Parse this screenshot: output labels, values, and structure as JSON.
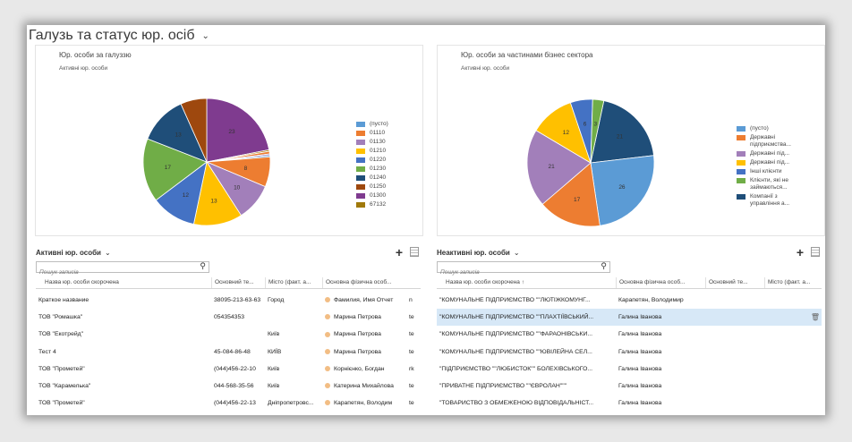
{
  "dashboard": {
    "title": "Галузь та статус юр. осіб"
  },
  "chart1": {
    "title": "Юр. особи за галуззю",
    "subtitle": "Активні юр. особи"
  },
  "chart2": {
    "title": "Юр. особи за частинами бізнес сектора",
    "subtitle": "Активні юр. особи"
  },
  "chart_data": [
    {
      "type": "pie",
      "title": "Юр. особи за галуззю",
      "subtitle": "Активні юр. особи",
      "legend_position": "right",
      "slices": [
        {
          "label": "01300",
          "value": 23,
          "color": "#7f3b8f",
          "shown": "23"
        },
        {
          "label": "67132",
          "value": 0.4,
          "color": "#a0790a",
          "shown": ""
        },
        {
          "label": "01110",
          "value": 0.7,
          "color": "#ed7d31",
          "shown": ""
        },
        {
          "label": "01130",
          "value": 0.4,
          "color": "#a27fba",
          "shown": ""
        },
        {
          "label": "(пусто)",
          "value": 0.4,
          "color": "#5b9bd5",
          "shown": ""
        },
        {
          "label": "01110",
          "value": 8,
          "color": "#ed7d31",
          "shown": "8"
        },
        {
          "label": "01130",
          "value": 10,
          "color": "#a27fba",
          "shown": "10"
        },
        {
          "label": "01210",
          "value": 13,
          "color": "#ffc000",
          "shown": "13"
        },
        {
          "label": "01220",
          "value": 12,
          "color": "#4472c4",
          "shown": "12"
        },
        {
          "label": "01230",
          "value": 17,
          "color": "#70ad47",
          "shown": "17"
        },
        {
          "label": "01240",
          "value": 13,
          "color": "#1f4e79",
          "shown": "13"
        },
        {
          "label": "01250",
          "value": 7,
          "color": "#9e480e",
          "shown": ""
        }
      ],
      "legend": [
        {
          "label": "(пусто)",
          "color": "#5b9bd5"
        },
        {
          "label": "01110",
          "color": "#ed7d31"
        },
        {
          "label": "01130",
          "color": "#a27fba"
        },
        {
          "label": "01210",
          "color": "#ffc000"
        },
        {
          "label": "01220",
          "color": "#4472c4"
        },
        {
          "label": "01230",
          "color": "#70ad47"
        },
        {
          "label": "01240",
          "color": "#1f4e79"
        },
        {
          "label": "01250",
          "color": "#9e480e"
        },
        {
          "label": "01300",
          "color": "#7f3b8f"
        },
        {
          "label": "67132",
          "color": "#a0790a"
        }
      ]
    },
    {
      "type": "pie",
      "title": "Юр. особи за частинами бізнес сектора",
      "subtitle": "Активні юр. особи",
      "legend_position": "right",
      "slices": [
        {
          "label": "Компанії з управління а...",
          "value": 21,
          "color": "#1f4e79",
          "shown": "21"
        },
        {
          "label": "(пусто)",
          "value": 26,
          "color": "#5b9bd5",
          "shown": "26"
        },
        {
          "label": "Державні підприємства...",
          "value": 17,
          "color": "#ed7d31",
          "shown": "17"
        },
        {
          "label": "Державні під...",
          "value": 21,
          "color": "#a27fba",
          "shown": "21"
        },
        {
          "label": "Державні під...",
          "value": 12,
          "color": "#ffc000",
          "shown": "12"
        },
        {
          "label": "Інші клієнти",
          "value": 6,
          "color": "#4472c4",
          "shown": "6"
        },
        {
          "label": "Клієнти, які не займаються...",
          "value": 3,
          "color": "#70ad47",
          "shown": "3"
        }
      ],
      "legend": [
        {
          "label": "(пусто)",
          "color": "#5b9bd5"
        },
        {
          "label": "Державні підприємства...",
          "color": "#ed7d31"
        },
        {
          "label": "Державні під...",
          "color": "#a27fba"
        },
        {
          "label": "Державні під...",
          "color": "#ffc000"
        },
        {
          "label": "Інші клієнти",
          "color": "#4472c4"
        },
        {
          "label": "Клієнти, які не займаються...",
          "color": "#70ad47"
        },
        {
          "label": "Компанії з управління а...",
          "color": "#1f4e79"
        }
      ]
    }
  ],
  "grid_left": {
    "title": "Активні юр. особи",
    "dropdown_icon": "chevron-down",
    "add_icon": "plus",
    "view_icon": "grid-view",
    "search_placeholder": "Пошук записів",
    "search_icon": "magnifier",
    "columns": [
      "Назва юр. особи скорочена",
      "Основний те...",
      "Місто (факт. а...",
      "Основна фізична особ..."
    ],
    "rows": [
      {
        "name": "Краткое название",
        "phone": "38095-213-63-63",
        "city": "Город",
        "contact": "Фамилия, Имя Отчет",
        "extra": "n"
      },
      {
        "name": "ТОВ \"Ромашка\"",
        "phone": "054354353",
        "city": "",
        "contact": "Марина Петрова",
        "extra": "te"
      },
      {
        "name": "ТОВ \"Екотрейд\"",
        "phone": "",
        "city": "Київ",
        "contact": "Марина Петрова",
        "extra": "te"
      },
      {
        "name": "Тест 4",
        "phone": "45-084-86-48",
        "city": "КИЇВ",
        "contact": "Марина Петрова",
        "extra": "te"
      },
      {
        "name": "ТОВ \"Прометей\"",
        "phone": "(044)456-22-10",
        "city": "Київ",
        "contact": "Корнієнко, Богдан",
        "extra": "rk"
      },
      {
        "name": "ТОВ \"Карамелька\"",
        "phone": "044-568-35-56",
        "city": "Київ",
        "contact": "Катерина Михайлова",
        "extra": "te"
      },
      {
        "name": "ТОВ \"Прометей\"",
        "phone": "(044)456-22-13",
        "city": "Дніпропетровс...",
        "contact": "Карапетян, Володим",
        "extra": "te"
      }
    ]
  },
  "grid_right": {
    "title": "Неактивні юр. особи",
    "dropdown_icon": "chevron-down",
    "add_icon": "plus",
    "view_icon": "grid-view",
    "search_placeholder": "Пошук записів",
    "search_icon": "magnifier",
    "columns": [
      "Назва юр. особи скорочена ↑",
      "Основна фізична особ...",
      "Основний те...",
      "Місто (факт. а..."
    ],
    "rows": [
      {
        "name": "\"КОМУНАЛЬНЕ ПІДПРИЄМСТВО \"\"ЛЮТІЖКОМУНГ...",
        "contact": "Карапетян, Володимир"
      },
      {
        "name": "\"КОМУНАЛЬНЕ ПІДПРИЄМСТВО \"\"ПЛАХТІЇВСЬКИЙ...",
        "contact": "Галина Іванова",
        "selected": true,
        "delete_icon": "trash"
      },
      {
        "name": "\"КОМУНАЛЬНЕ ПІДПРИЄМСТВО \"\"ФАРАОНІВСЬКИ...",
        "contact": "Галина Іванова"
      },
      {
        "name": "\"КОМУНАЛЬНЕ ПІДПРИЄМСТВО \"\"ЮВІЛЕЙНА СЕЛ...",
        "contact": "Галина Іванова"
      },
      {
        "name": "\"ПІДПРИЄМСТВО \"\"ЛЮБИСТОК\"\" БОЛЕХІВСЬКОГО...",
        "contact": "Галина Іванова"
      },
      {
        "name": "\"ПРИВАТНЕ ПІДПРИЄМСТВО \"\"ЄВРОЛАН\"\"\"",
        "contact": "Галина Іванова"
      },
      {
        "name": "\"ТОВАРИСТВО З ОБМЕЖЕНОЮ ВІДПОВІДАЛЬНІСТ...",
        "contact": "Галина Іванова"
      }
    ]
  }
}
